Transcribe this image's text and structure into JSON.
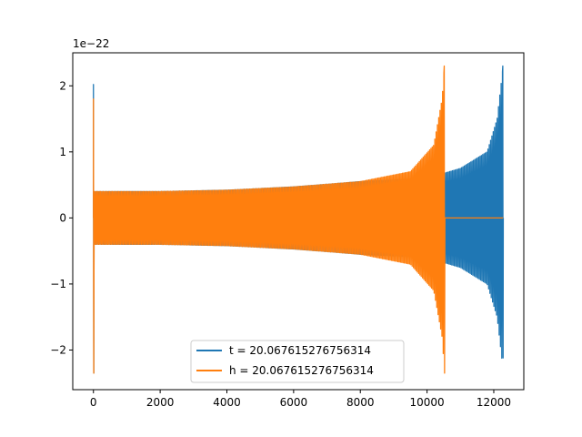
{
  "chart_data": {
    "type": "line",
    "x_tick_labels": [
      "0",
      "2000",
      "4000",
      "6000",
      "8000",
      "10000",
      "12000"
    ],
    "x_ticks": [
      0,
      2000,
      4000,
      6000,
      8000,
      10000,
      12000
    ],
    "y_tick_labels": [
      "−2",
      "−1",
      "0",
      "1",
      "2"
    ],
    "y_ticks": [
      -2,
      -1,
      0,
      1,
      2
    ],
    "y_offset_text": "1e−22",
    "xlim": [
      -620,
      12900
    ],
    "ylim": [
      -2.6,
      2.5
    ],
    "grid": false,
    "legend_position": "bottom-center",
    "series": [
      {
        "name": "t = 20.067615276756314",
        "color": "#1f77b4",
        "description_points": {
          "start_x": 0,
          "end_x": 12280,
          "initial_burst_x": 0,
          "initial_burst_min": -2.35,
          "initial_burst_max": 2.02,
          "amplitude_at": [
            [
              0,
              0.4
            ],
            [
              2000,
              0.4
            ],
            [
              4000,
              0.42
            ],
            [
              6000,
              0.47
            ],
            [
              8000,
              0.55
            ],
            [
              10000,
              0.6
            ],
            [
              11000,
              0.75
            ],
            [
              11800,
              1.0
            ],
            [
              12100,
              1.5
            ],
            [
              12280,
              2.3
            ]
          ],
          "final_min": -2.12,
          "final_max": 2.3
        }
      },
      {
        "name": "h = 20.067615276756314",
        "color": "#ff7f0e",
        "description_points": {
          "start_x": 0,
          "end_x": 12280,
          "merger_x": 10520,
          "amplitude_at": [
            [
              0,
              0.4
            ],
            [
              2000,
              0.4
            ],
            [
              4000,
              0.42
            ],
            [
              6000,
              0.47
            ],
            [
              8000,
              0.55
            ],
            [
              9500,
              0.7
            ],
            [
              10200,
              1.1
            ],
            [
              10450,
              1.8
            ],
            [
              10520,
              2.3
            ]
          ],
          "merger_min": -2.35,
          "merger_max": 2.3,
          "post_merger_value": 0
        }
      }
    ]
  }
}
